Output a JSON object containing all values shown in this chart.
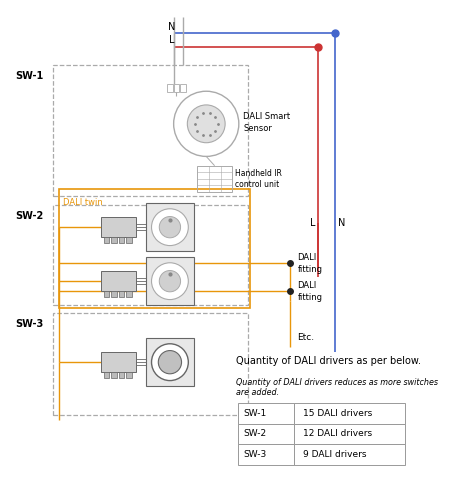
{
  "bg_color": "#ffffff",
  "fig_width": 4.74,
  "fig_height": 4.86,
  "dpi": 100,
  "orange": "#e8960a",
  "red": "#cc3333",
  "blue": "#4466cc",
  "lgray": "#aaaaaa",
  "dgray": "#666666",
  "dark": "#222222",
  "sw_labels": [
    "SW-1",
    "SW-2",
    "SW-3"
  ],
  "table_rows": [
    [
      "SW-1",
      "15 DALI drivers"
    ],
    [
      "SW-2",
      "12 DALI drivers"
    ],
    [
      "SW-3",
      "9 DALI drivers"
    ]
  ],
  "qty_title": "Quantity of DALI drivers as per below.",
  "qty_note": "Quantity of DALI drivers reduces as more switches\nare added."
}
